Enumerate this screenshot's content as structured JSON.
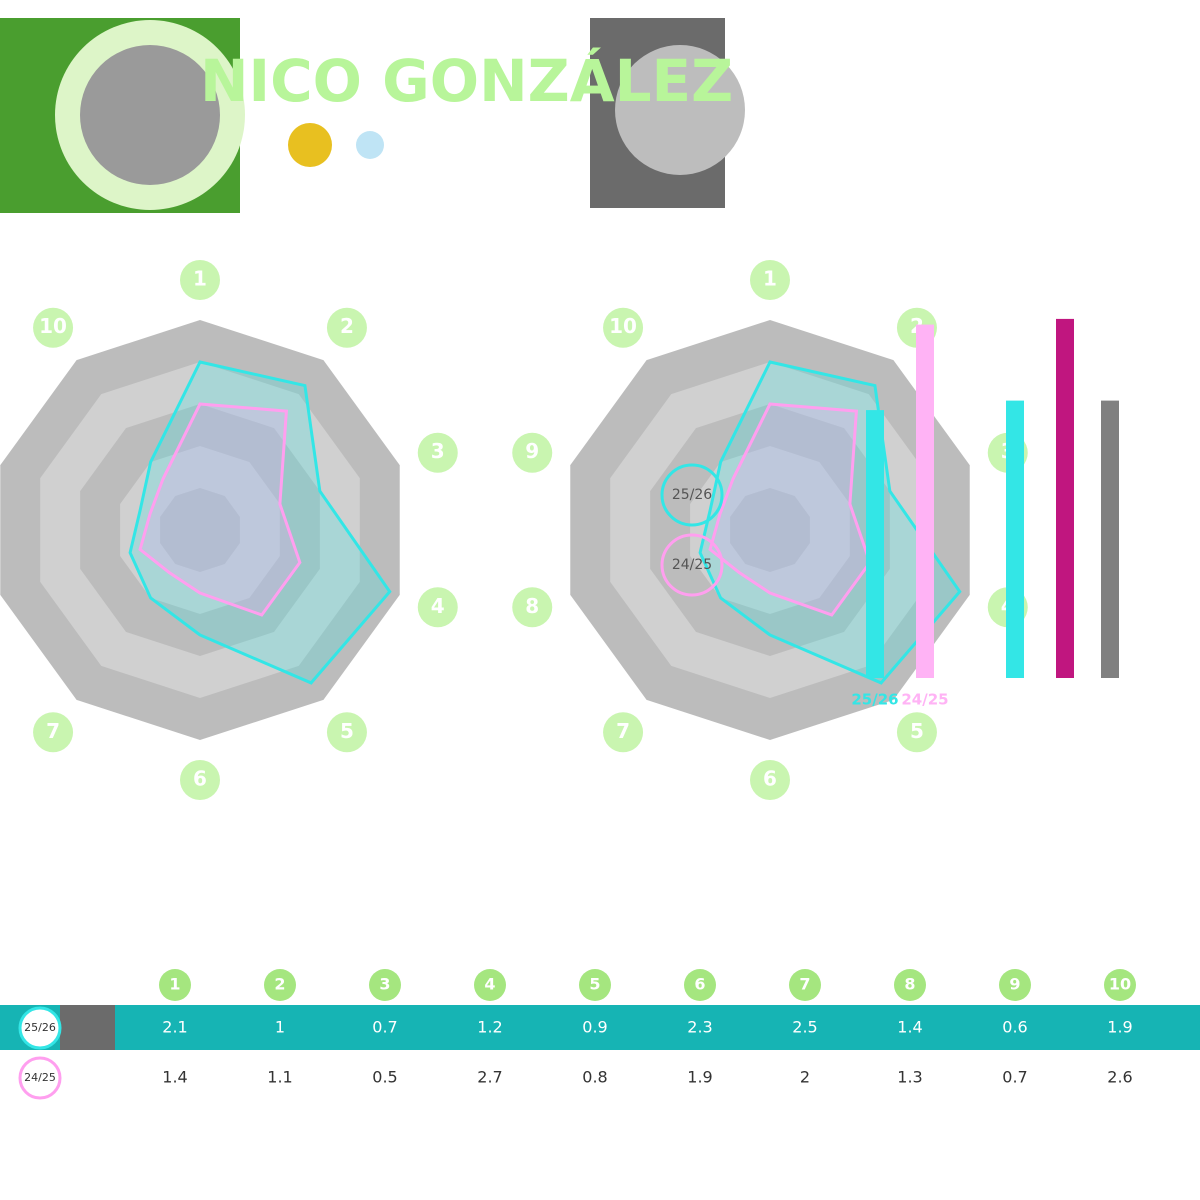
{
  "header": {
    "title": "NICO GONZÁLEZ"
  },
  "radar": {
    "axes": [
      1,
      2,
      3,
      4,
      5,
      6,
      7,
      8,
      9,
      10
    ],
    "max": 10,
    "series": [
      {
        "name": "25/26",
        "color": "#33e6e6",
        "values": [
          8,
          8.5,
          6,
          9.5,
          9,
          5,
          4,
          3.5,
          3,
          4
        ]
      },
      {
        "name": "24/25",
        "color": "#ff9fef",
        "values": [
          6,
          7,
          4,
          5,
          5,
          3,
          2.5,
          3,
          2.5,
          3
        ]
      }
    ]
  },
  "bars": {
    "max": 20,
    "items": [
      {
        "season": "25/26",
        "color": "#33e6e6",
        "value": 14.1
      },
      {
        "season": "24/25",
        "color": "#ffb3f5",
        "value": 18.6
      },
      {
        "color": "#33e6e6",
        "value": 14.6
      },
      {
        "color": "#c0167f",
        "value": 18.9
      },
      {
        "color": "#808080",
        "value": 14.6
      }
    ]
  },
  "table": {
    "columns": [
      1,
      2,
      3,
      4,
      5,
      6,
      7,
      8,
      9,
      10
    ],
    "rows": [
      {
        "season": "25/26",
        "values": [
          2.1,
          1.0,
          0.7,
          1.2,
          0.9,
          2.3,
          2.5,
          1.4,
          0.6,
          1.9
        ]
      },
      {
        "season": "24/25",
        "values": [
          1.4,
          1.1,
          0.5,
          2.7,
          0.8,
          1.9,
          2.0,
          1.3,
          0.7,
          2.6
        ]
      }
    ]
  }
}
